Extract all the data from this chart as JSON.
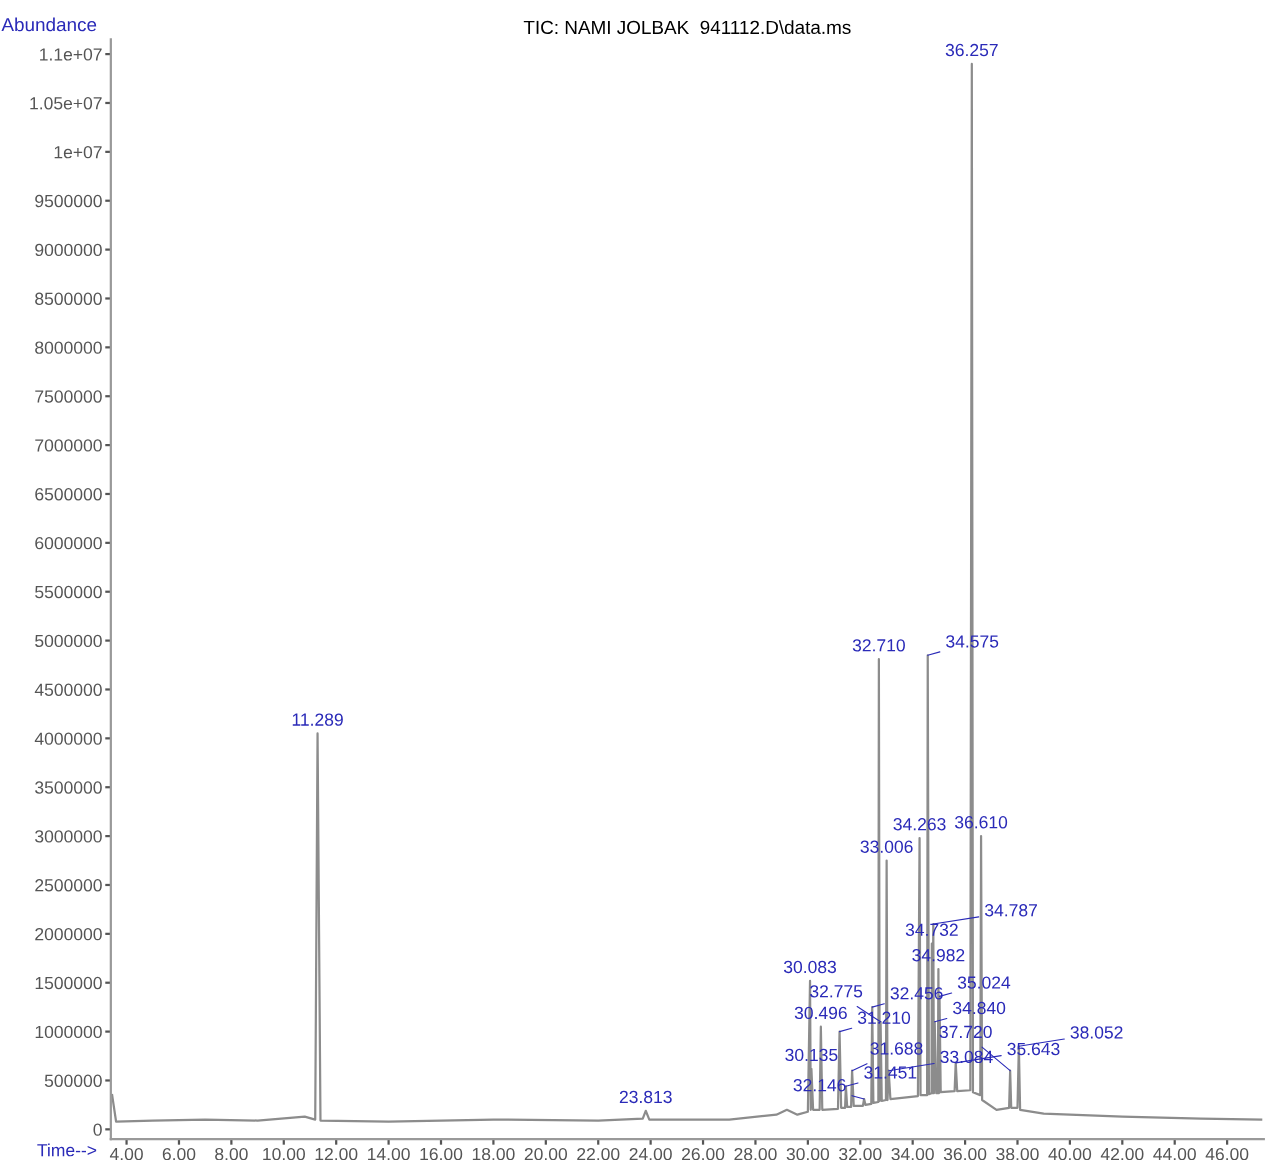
{
  "chart_data": {
    "type": "line",
    "title": "TIC: NAMI JOLBAK  941112.D\\data.ms",
    "xlabel": "Time-->",
    "ylabel": "Abundance",
    "series": [
      {
        "color": "#8c8c8c",
        "x": [
          3.45,
          3.6,
          5,
          7,
          9,
          10.8,
          11.2,
          11.289,
          11.4,
          14,
          18,
          22,
          23.7,
          23.813,
          23.95,
          27,
          28.8,
          29.2,
          29.6,
          30.0,
          30.083,
          30.11,
          30.135,
          30.2,
          30.45,
          30.496,
          30.55,
          31.15,
          31.21,
          31.27,
          31.42,
          31.451,
          31.5,
          31.65,
          31.688,
          31.75,
          32.1,
          32.146,
          32.2,
          32.42,
          32.456,
          32.5,
          32.69,
          32.71,
          32.74,
          32.775,
          32.82,
          32.98,
          33.006,
          33.04,
          33.084,
          33.15,
          34.2,
          34.263,
          34.3,
          34.55,
          34.575,
          34.62,
          34.72,
          34.732,
          34.75,
          34.787,
          34.81,
          34.84,
          34.9,
          34.96,
          34.982,
          35.0,
          35.024,
          35.07,
          35.6,
          35.643,
          35.7,
          36.2,
          36.257,
          36.3,
          36.58,
          36.61,
          36.65,
          37.2,
          37.68,
          37.72,
          37.76,
          38.0,
          38.052,
          38.1,
          39,
          42,
          45,
          47.3
        ],
        "values": [
          350000,
          80000,
          90000,
          100000,
          90000,
          130000,
          100000,
          4050000,
          90000,
          80000,
          100000,
          90000,
          110000,
          190000,
          100000,
          100000,
          150000,
          200000,
          150000,
          180000,
          1520000,
          200000,
          620000,
          200000,
          200000,
          1050000,
          200000,
          210000,
          1000000,
          220000,
          220000,
          440000,
          230000,
          230000,
          600000,
          240000,
          240000,
          310000,
          250000,
          260000,
          1250000,
          270000,
          280000,
          4810000,
          290000,
          1100000,
          290000,
          300000,
          2750000,
          300000,
          600000,
          310000,
          340000,
          2980000,
          350000,
          350000,
          4850000,
          360000,
          370000,
          1900000,
          370000,
          2100000,
          370000,
          1100000,
          370000,
          370000,
          1640000,
          370000,
          1360000,
          380000,
          390000,
          680000,
          390000,
          400000,
          10900000,
          380000,
          350000,
          3000000,
          300000,
          200000,
          220000,
          600000,
          220000,
          220000,
          850000,
          200000,
          160000,
          130000,
          110000,
          100000
        ]
      }
    ],
    "annotations": [
      {
        "text": "11.289",
        "x": 11.289,
        "y": 4050000
      },
      {
        "text": "23.813",
        "x": 23.813,
        "y": 190000
      },
      {
        "text": "30.083",
        "x": 30.083,
        "y": 1520000
      },
      {
        "text": "30.135",
        "x": 30.135,
        "y": 620000
      },
      {
        "text": "30.496",
        "x": 30.496,
        "y": 1050000
      },
      {
        "text": "31.210",
        "x": 31.21,
        "y": 1000000
      },
      {
        "text": "31.451",
        "x": 31.451,
        "y": 440000
      },
      {
        "text": "31.688",
        "x": 31.688,
        "y": 600000
      },
      {
        "text": "32.146",
        "x": 32.146,
        "y": 310000
      },
      {
        "text": "32.456",
        "x": 32.456,
        "y": 1250000
      },
      {
        "text": "32.710",
        "x": 32.71,
        "y": 4810000
      },
      {
        "text": "32.775",
        "x": 32.775,
        "y": 1100000
      },
      {
        "text": "33.006",
        "x": 33.006,
        "y": 2750000
      },
      {
        "text": "33.084",
        "x": 33.084,
        "y": 600000
      },
      {
        "text": "34.263",
        "x": 34.263,
        "y": 2980000
      },
      {
        "text": "34.575",
        "x": 34.575,
        "y": 4850000
      },
      {
        "text": "34.732",
        "x": 34.732,
        "y": 1900000
      },
      {
        "text": "34.787",
        "x": 34.787,
        "y": 2100000
      },
      {
        "text": "34.840",
        "x": 34.84,
        "y": 1100000
      },
      {
        "text": "34.982",
        "x": 34.982,
        "y": 1640000
      },
      {
        "text": "35.024",
        "x": 35.024,
        "y": 1360000
      },
      {
        "text": "35.643",
        "x": 35.643,
        "y": 680000
      },
      {
        "text": "36.257",
        "x": 36.257,
        "y": 10900000
      },
      {
        "text": "36.610",
        "x": 36.61,
        "y": 3000000
      },
      {
        "text": "37.720",
        "x": 37.72,
        "y": 600000
      },
      {
        "text": "38.052",
        "x": 38.052,
        "y": 850000
      }
    ],
    "xlim": [
      3.4,
      47.4
    ],
    "ylim": [
      -100000,
      11150000
    ],
    "xticks": [
      {
        "value": 4,
        "label": "4.00"
      },
      {
        "value": 6,
        "label": "6.00"
      },
      {
        "value": 8,
        "label": "8.00"
      },
      {
        "value": 10,
        "label": "10.00"
      },
      {
        "value": 12,
        "label": "12.00"
      },
      {
        "value": 14,
        "label": "14.00"
      },
      {
        "value": 16,
        "label": "16.00"
      },
      {
        "value": 18,
        "label": "18.00"
      },
      {
        "value": 20,
        "label": "20.00"
      },
      {
        "value": 22,
        "label": "22.00"
      },
      {
        "value": 24,
        "label": "24.00"
      },
      {
        "value": 26,
        "label": "26.00"
      },
      {
        "value": 28,
        "label": "28.00"
      },
      {
        "value": 30,
        "label": "30.00"
      },
      {
        "value": 32,
        "label": "32.00"
      },
      {
        "value": 34,
        "label": "34.00"
      },
      {
        "value": 36,
        "label": "36.00"
      },
      {
        "value": 38,
        "label": "38.00"
      },
      {
        "value": 40,
        "label": "40.00"
      },
      {
        "value": 42,
        "label": "42.00"
      },
      {
        "value": 44,
        "label": "44.00"
      },
      {
        "value": 46,
        "label": "46.00"
      }
    ],
    "yticks": [
      0,
      500000,
      1000000,
      1500000,
      2000000,
      2500000,
      3000000,
      3500000,
      4000000,
      4500000,
      5000000,
      5500000,
      6000000,
      6500000,
      7000000,
      7500000,
      8000000,
      8500000,
      9000000,
      9500000,
      {
        "value": 10000000,
        "label": "1e+07"
      },
      {
        "value": 10500000,
        "label": "1.05e+07"
      },
      {
        "value": 11000000,
        "label": "1.1e+07"
      }
    ],
    "grid": false,
    "legend": false,
    "marker": "none",
    "line_style": "solid"
  }
}
